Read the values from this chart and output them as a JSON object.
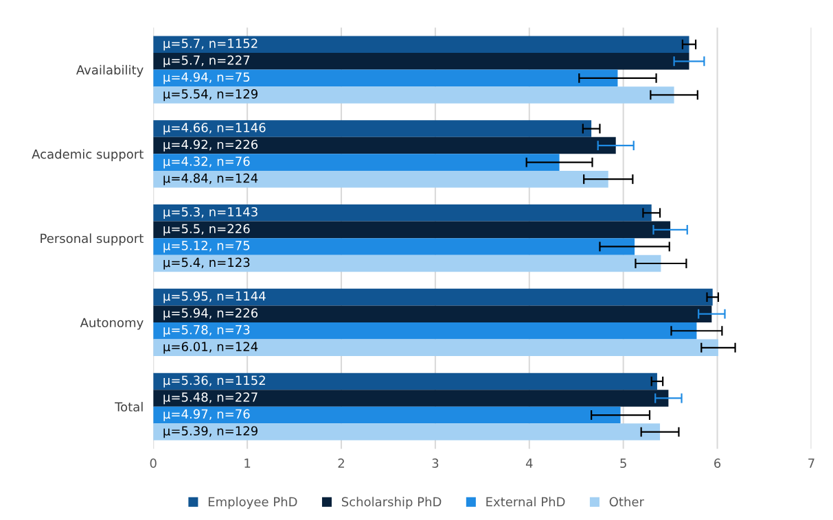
{
  "chart_data": {
    "type": "bar",
    "orientation": "horizontal",
    "categories": [
      "Availability",
      "Academic support",
      "Personal support",
      "Autonomy",
      "Total"
    ],
    "series": [
      {
        "name": "Employee PhD",
        "color": "#115592",
        "values": [
          5.7,
          4.66,
          5.3,
          5.95,
          5.36
        ],
        "errors": [
          0.07,
          0.09,
          0.09,
          0.06,
          0.06
        ],
        "value_labels": [
          "μ=5.7, n=1152",
          "μ=4.66, n=1146",
          "μ=5.3, n=1143",
          "μ=5.95, n=1144",
          "μ=5.36, n=1152"
        ]
      },
      {
        "name": "Scholarship PhD",
        "color": "#08213b",
        "values": [
          5.7,
          4.92,
          5.5,
          5.94,
          5.48
        ],
        "errors": [
          0.16,
          0.19,
          0.18,
          0.14,
          0.14
        ],
        "value_labels": [
          "μ=5.7, n=227",
          "μ=4.92, n=226",
          "μ=5.5, n=226",
          "μ=5.94, n=226",
          "μ=5.48, n=227"
        ]
      },
      {
        "name": "External PhD",
        "color": "#1f8be3",
        "values": [
          4.94,
          4.32,
          5.12,
          5.78,
          4.97
        ],
        "errors": [
          0.41,
          0.35,
          0.37,
          0.27,
          0.31
        ],
        "value_labels": [
          "μ=4.94, n=75",
          "μ=4.32, n=76",
          "μ=5.12, n=75",
          "μ=5.78, n=73",
          "μ=4.97, n=76"
        ]
      },
      {
        "name": "Other",
        "color": "#a3d0f3",
        "values": [
          5.54,
          4.84,
          5.4,
          6.01,
          5.39
        ],
        "errors": [
          0.25,
          0.26,
          0.27,
          0.18,
          0.2
        ],
        "value_labels": [
          "μ=5.54, n=129",
          "μ=4.84, n=124",
          "μ=5.4, n=123",
          "μ=6.01, n=124",
          "μ=5.39, n=129"
        ]
      }
    ],
    "xlim": [
      0,
      7
    ],
    "xticks": [
      0,
      1,
      2,
      3,
      4,
      5,
      6,
      7
    ],
    "grid": "x",
    "legend": "bottom"
  }
}
